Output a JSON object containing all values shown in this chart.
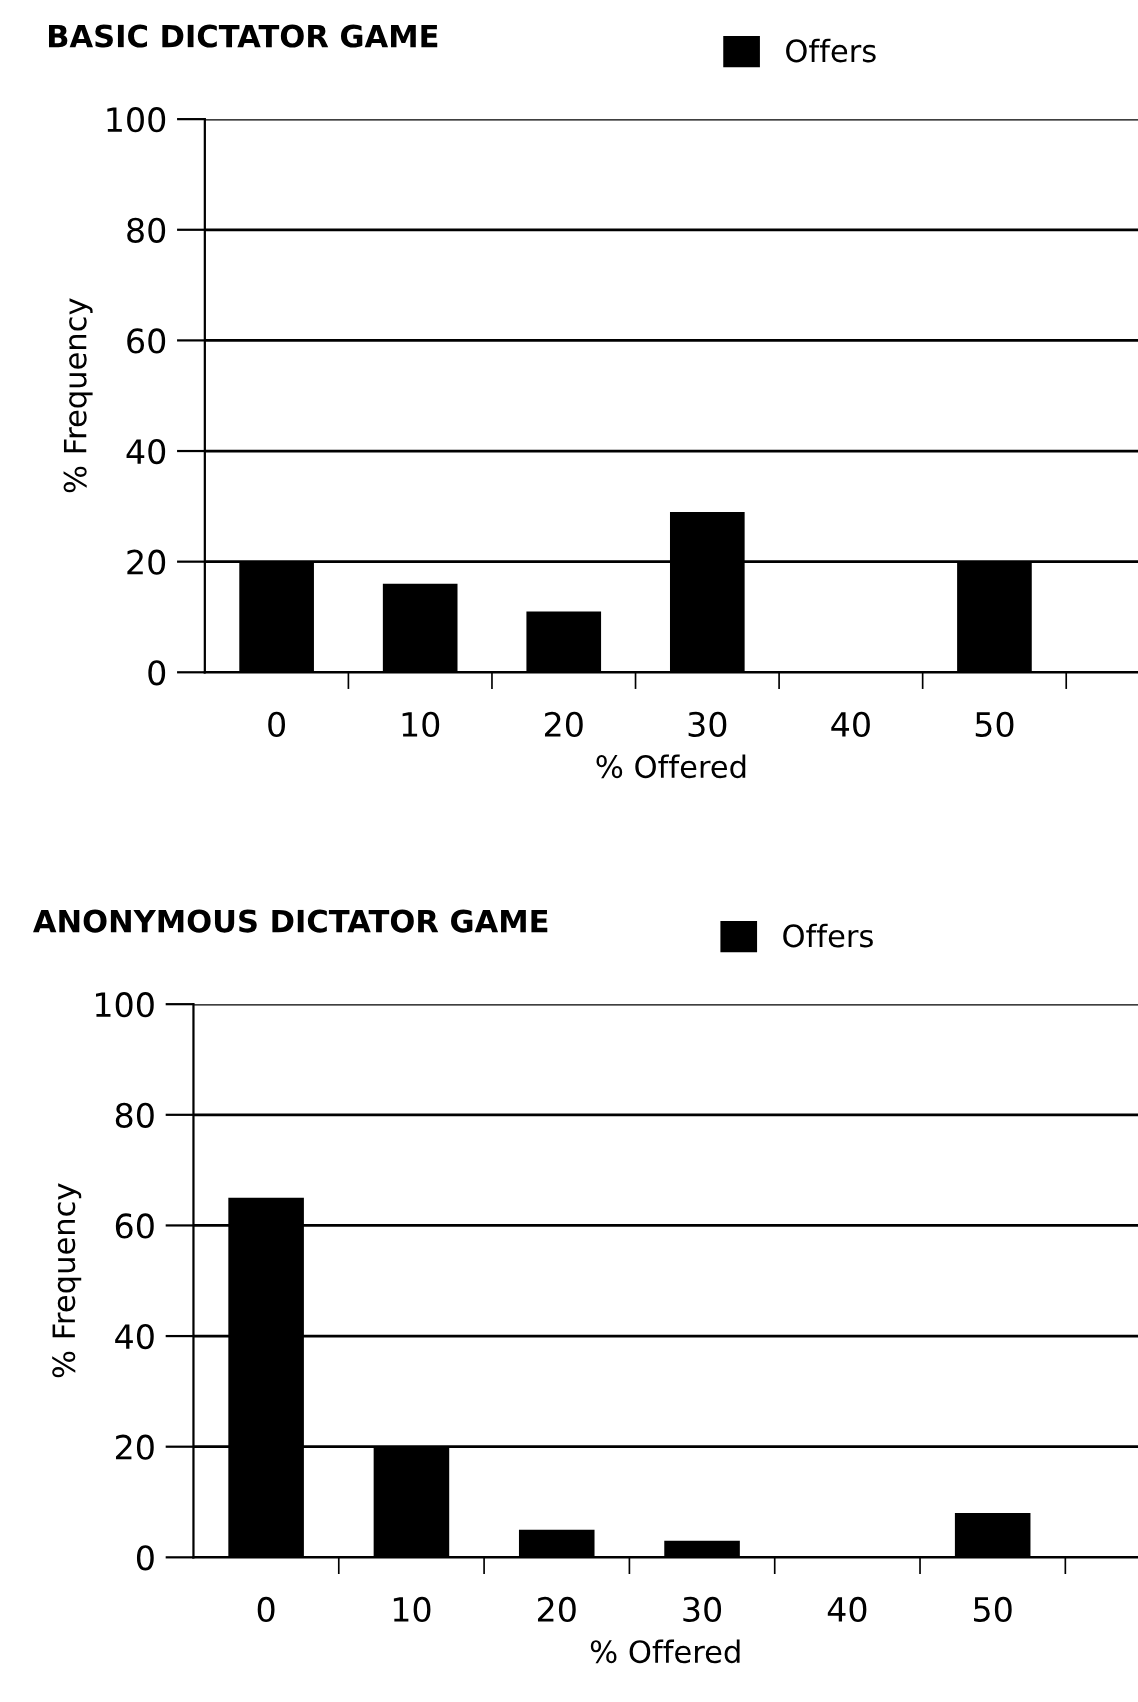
{
  "chart_data": [
    {
      "type": "bar",
      "title": "BASIC DICTATOR GAME",
      "xlabel": "% Offered",
      "ylabel": "% Frequency",
      "categories": [
        "0",
        "10",
        "20",
        "30",
        "40",
        "50"
      ],
      "series": [
        {
          "name": "Offers",
          "color": "#000000",
          "values": [
            20,
            16,
            11,
            29,
            0,
            20
          ]
        }
      ],
      "ylim": [
        0,
        100
      ],
      "yticks": [
        0,
        20,
        40,
        60,
        80,
        100
      ],
      "grid": "y",
      "legend": "top right"
    },
    {
      "type": "bar",
      "title": "ANONYMOUS DICTATOR GAME",
      "xlabel": "% Offered",
      "ylabel": "% Frequency",
      "categories": [
        "0",
        "10",
        "20",
        "30",
        "40",
        "50"
      ],
      "series": [
        {
          "name": "Offers",
          "color": "#000000",
          "values": [
            65,
            20,
            5,
            3,
            0,
            8
          ]
        }
      ],
      "ylim": [
        0,
        100
      ],
      "yticks": [
        0,
        20,
        40,
        60,
        80,
        100
      ],
      "grid": "y",
      "legend": "top right"
    }
  ]
}
